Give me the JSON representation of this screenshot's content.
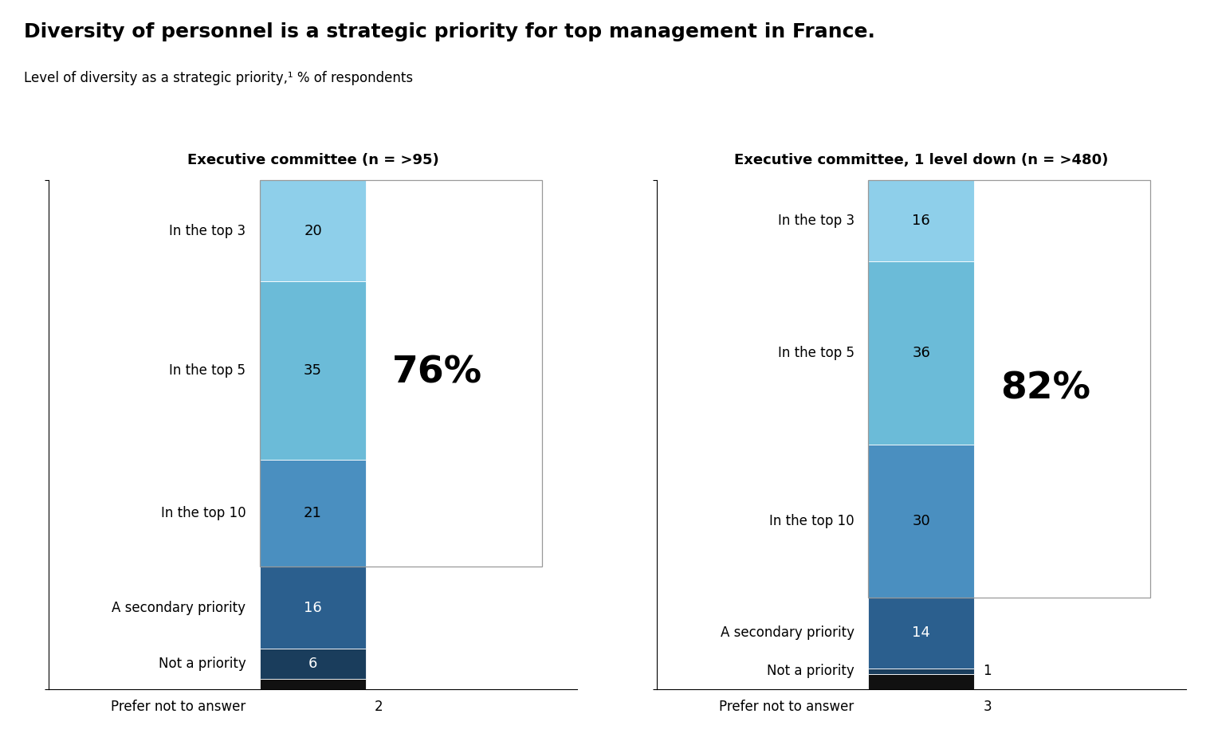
{
  "title": "Diversity of personnel is a strategic priority for top management in France.",
  "subtitle": "Level of diversity as a strategic priority,¹ % of respondents",
  "chart_data": [
    {
      "type": "bar",
      "stacked": true,
      "title": "Executive committee (n = >95)",
      "categories": [
        null
      ],
      "series": [
        {
          "name": "In the top 3",
          "color": "#8ECFEA",
          "values": [
            20
          ]
        },
        {
          "name": "In the top 5",
          "color": "#6BBBD8",
          "values": [
            35
          ]
        },
        {
          "name": "In the top 10",
          "color": "#4A8FC0",
          "values": [
            21
          ]
        },
        {
          "name": "A secondary priority",
          "color": "#2B5F8E",
          "values": [
            16
          ]
        },
        {
          "name": "Not a priority",
          "color": "#1A3D5C",
          "values": [
            6
          ]
        },
        {
          "name": "Prefer not to answer",
          "color": "#111111",
          "values": [
            2
          ]
        }
      ],
      "ylim": [
        0,
        100
      ],
      "yticks": [
        0,
        100
      ],
      "tick_labels": false,
      "data_labels": true,
      "annotations": [
        "76%"
      ]
    },
    {
      "type": "bar",
      "stacked": true,
      "title": "Executive committee, 1 level down (n = >480)",
      "categories": [
        null
      ],
      "series": [
        {
          "name": "In the top 3",
          "color": "#8ECFEA",
          "values": [
            16
          ]
        },
        {
          "name": "In the top 5",
          "color": "#6BBBD8",
          "values": [
            36
          ]
        },
        {
          "name": "In the top 10",
          "color": "#4A8FC0",
          "values": [
            30
          ]
        },
        {
          "name": "A secondary priority",
          "color": "#2B5F8E",
          "values": [
            14
          ]
        },
        {
          "name": "Not a priority",
          "color": "#1A3D5C",
          "values": [
            1
          ]
        },
        {
          "name": "Prefer not to answer",
          "color": "#111111",
          "values": [
            3
          ]
        }
      ],
      "ylim": [
        0,
        100
      ],
      "yticks": [
        0,
        100
      ],
      "tick_labels": false,
      "data_labels": true,
      "annotations": [
        "82%"
      ]
    }
  ]
}
